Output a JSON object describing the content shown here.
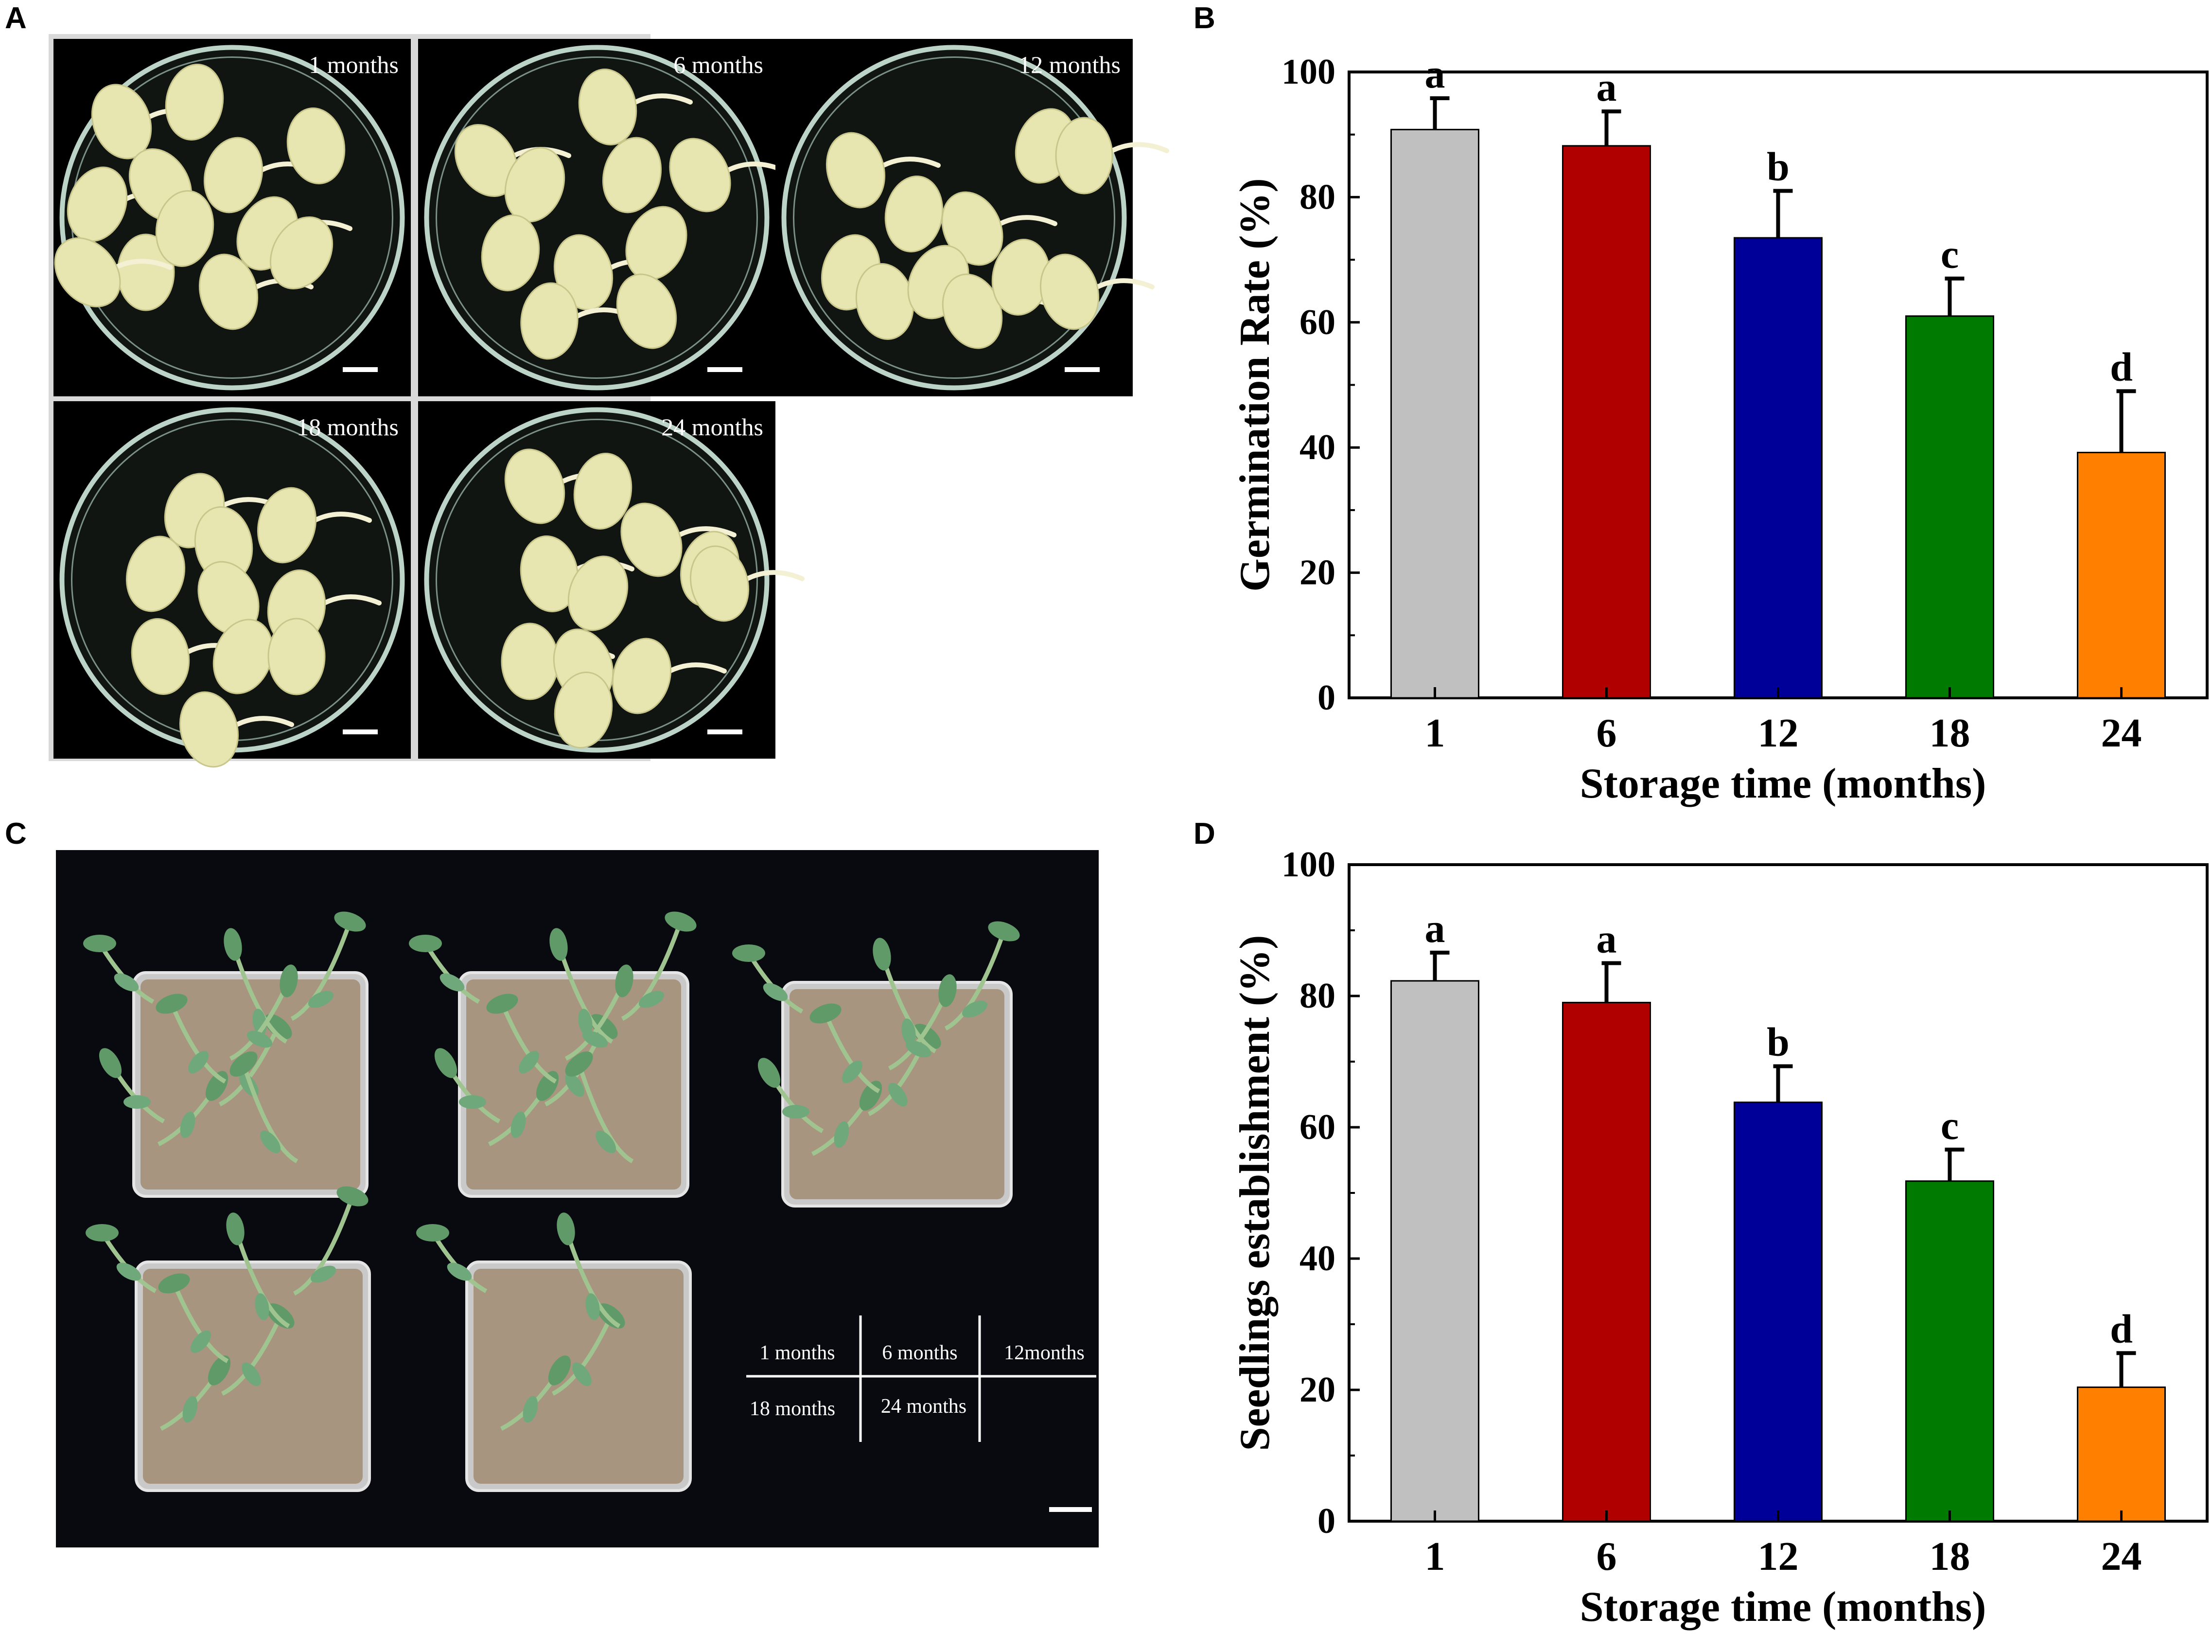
{
  "panels": {
    "A": {
      "label": "A",
      "dishes": [
        "1 months",
        "6 months",
        "12 months",
        "18 months",
        "24 months"
      ]
    },
    "B": {
      "label": "B"
    },
    "C": {
      "label": "C",
      "legend": {
        "row1": [
          "1 months",
          "6 months",
          "12months"
        ],
        "row2": [
          "18 months",
          "24 months"
        ]
      }
    },
    "D": {
      "label": "D"
    }
  },
  "colors": {
    "bar_1": "#c0c0c0",
    "bar_6": "#b00000",
    "bar_12": "#000099",
    "bar_18": "#007a00",
    "bar_24": "#ff7f00",
    "photo_background": "#000000",
    "seed": "#e8e6b0",
    "leaf": "#5f9a68",
    "soil": "#a89580"
  },
  "chart_data": [
    {
      "type": "bar",
      "panel": "B",
      "categories": [
        "1",
        "6",
        "12",
        "18",
        "24"
      ],
      "values": [
        90.8,
        88.2,
        73.5,
        61.0,
        39.2
      ],
      "errors": [
        5.0,
        5.5,
        7.5,
        6.0,
        9.8
      ],
      "significance": [
        "a",
        "a",
        "b",
        "c",
        "d"
      ],
      "xlabel": "Storage time (months)",
      "ylabel": "Germination Rate (%)",
      "yticks": [
        "0",
        "20",
        "40",
        "60",
        "80",
        "100"
      ],
      "ylim": [
        0,
        100
      ],
      "grid": false,
      "legend": "none"
    },
    {
      "type": "bar",
      "panel": "D",
      "categories": [
        "1",
        "6",
        "12",
        "18",
        "24"
      ],
      "values": [
        82.3,
        79.0,
        63.8,
        51.8,
        20.4
      ],
      "errors": [
        4.3,
        6.0,
        5.5,
        4.8,
        5.2
      ],
      "significance": [
        "a",
        "a",
        "b",
        "c",
        "d"
      ],
      "xlabel": "Storage time (months)",
      "ylabel": "Seedlings establishment (%)",
      "yticks": [
        "0",
        "20",
        "40",
        "60",
        "80",
        "100"
      ],
      "ylim": [
        0,
        100
      ],
      "grid": false,
      "legend": "none"
    }
  ]
}
